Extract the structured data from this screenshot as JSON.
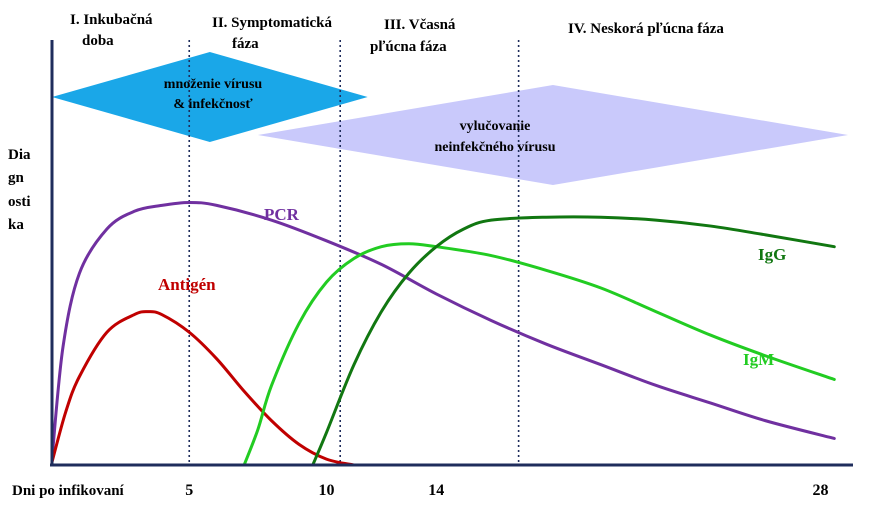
{
  "chart_data": {
    "type": "line",
    "xlabel": "Dni po infikovaní",
    "ylabel_lines": [
      "Dia",
      "gn",
      "osti",
      "ka"
    ],
    "x_ticks": [
      {
        "value": 5,
        "label": "5"
      },
      {
        "value": 10,
        "label": "10"
      },
      {
        "value": 14,
        "label": "14"
      },
      {
        "value": 28,
        "label": "28"
      }
    ],
    "xlim": [
      0,
      29
    ],
    "ylim": [
      0,
      100
    ],
    "phases": [
      {
        "line1": "I. Inkubačná",
        "line2": "doba"
      },
      {
        "line1": "II. Symptomatická",
        "line2": "fáza"
      },
      {
        "line1": "III. Včasná",
        "line2": "pľúcna fáza"
      },
      {
        "line1": "IV. Neskorá pľúcna fáza",
        "line2": ""
      }
    ],
    "phase_boundaries": [
      5,
      10.5,
      17
    ],
    "bands": [
      {
        "line1": "množenie vírusu",
        "line2": "& infekčnosť",
        "x_start": 0,
        "x_end": 11.5,
        "color": "#1aa7e8"
      },
      {
        "line1": "vylučovanie",
        "line2": "neinfekčného vírusu",
        "x_start": 7.5,
        "x_end": 29,
        "color": "#c9c9fb"
      }
    ],
    "series": [
      {
        "name": "PCR",
        "color": "#7030a0",
        "x": [
          0,
          0.4,
          1,
          2,
          3,
          4,
          5,
          6,
          8,
          10,
          12,
          14,
          16,
          18,
          20,
          22,
          24,
          26,
          28.5
        ],
        "y": [
          2,
          40,
          65,
          80,
          86,
          88,
          89,
          88,
          83,
          76,
          68,
          58,
          49,
          41,
          34,
          27,
          21,
          15,
          9
        ]
      },
      {
        "name": "Antigén",
        "color": "#c00000",
        "x": [
          0,
          0.5,
          1,
          2,
          3,
          3.5,
          4,
          5,
          6,
          7,
          8,
          9,
          10,
          11
        ],
        "y": [
          1,
          18,
          30,
          45,
          51,
          52,
          51,
          45,
          36,
          25,
          15,
          7,
          2,
          0
        ]
      },
      {
        "name": "IgM",
        "color": "#22cc22",
        "x": [
          7,
          7.5,
          8,
          9,
          10,
          11,
          12,
          13,
          14,
          16,
          18,
          20,
          22,
          24,
          26,
          28.5
        ],
        "y": [
          0,
          12,
          27,
          48,
          62,
          70,
          74,
          75,
          74,
          71,
          66,
          60,
          52,
          44,
          37,
          29
        ]
      },
      {
        "name": "IgG",
        "color": "#117711",
        "x": [
          9.5,
          10,
          11,
          12,
          13,
          14,
          15,
          16,
          18,
          20,
          22,
          24,
          26,
          28.5
        ],
        "y": [
          0,
          11,
          34,
          52,
          65,
          74,
          80,
          83,
          84,
          84,
          83,
          81,
          78,
          74
        ]
      }
    ]
  }
}
